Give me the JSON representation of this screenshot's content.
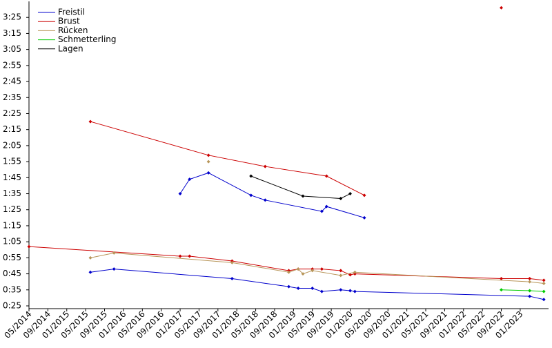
{
  "chart_data": {
    "type": "line",
    "legend": "top-left",
    "xlim": [
      "05/2014",
      "07/2023"
    ],
    "ylim": [
      25,
      215
    ],
    "xticks": [
      "05/2014",
      "09/2014",
      "01/2015",
      "05/2015",
      "09/2015",
      "01/2016",
      "05/2016",
      "09/2016",
      "01/2017",
      "05/2017",
      "09/2017",
      "01/2018",
      "05/2018",
      "09/2018",
      "01/2019",
      "05/2019",
      "09/2019",
      "01/2020",
      "05/2020",
      "09/2020",
      "01/2021",
      "05/2021",
      "09/2021",
      "01/2022",
      "05/2022",
      "09/2022",
      "01/2023"
    ],
    "yticks": [
      {
        "value": 25,
        "label": "0:25"
      },
      {
        "value": 35,
        "label": "0:35"
      },
      {
        "value": 45,
        "label": "0:45"
      },
      {
        "value": 55,
        "label": "0:55"
      },
      {
        "value": 65,
        "label": "1:05"
      },
      {
        "value": 75,
        "label": "1:15"
      },
      {
        "value": 85,
        "label": "1:25"
      },
      {
        "value": 95,
        "label": "1:35"
      },
      {
        "value": 105,
        "label": "1:45"
      },
      {
        "value": 115,
        "label": "1:55"
      },
      {
        "value": 125,
        "label": "2:05"
      },
      {
        "value": 135,
        "label": "2:15"
      },
      {
        "value": 145,
        "label": "2:25"
      },
      {
        "value": 155,
        "label": "2:35"
      },
      {
        "value": 165,
        "label": "2:45"
      },
      {
        "value": 175,
        "label": "2:55"
      },
      {
        "value": 185,
        "label": "3:05"
      },
      {
        "value": 195,
        "label": "3:15"
      },
      {
        "value": 205,
        "label": "3:25"
      }
    ],
    "series": [
      {
        "name": "Freistil",
        "color": "#0000cc",
        "x": [
          "01/2017",
          "03/2017",
          "07/2017",
          "04/2018",
          "07/2018",
          "07/2019",
          "08/2019",
          "04/2020",
          null,
          "06/2015",
          "11/2015",
          "12/2017",
          "12/2018",
          "02/2019",
          "05/2019",
          "07/2019",
          "11/2019",
          "01/2020",
          "02/2020",
          "03/2023",
          "06/2023"
        ],
        "values": [
          95,
          104,
          108,
          94,
          91,
          84,
          87,
          80,
          null,
          46,
          48,
          42,
          37,
          36,
          36,
          34,
          35,
          34.5,
          34,
          31,
          29
        ]
      },
      {
        "name": "Brust",
        "color": "#cc0000",
        "x": [
          "06/2015",
          "07/2017",
          "07/2018",
          "08/2019",
          "04/2020",
          null,
          "05/2014",
          "01/2017",
          "03/2017",
          "12/2017",
          "12/2018",
          "02/2019",
          "05/2019",
          "07/2019",
          "11/2019",
          "01/2020",
          "02/2020",
          "09/2022",
          "03/2023",
          "06/2023",
          null,
          "09/2022"
        ],
        "values": [
          140,
          119,
          112,
          106,
          94,
          null,
          62,
          56,
          56,
          53,
          47,
          48,
          48,
          48,
          47,
          44.4,
          45,
          42,
          42,
          41,
          null,
          211
        ]
      },
      {
        "name": "Rücken",
        "color": "#b8965a",
        "x": [
          "06/2015",
          "11/2015",
          "12/2017",
          "12/2018",
          "02/2019",
          "03/2019",
          "05/2019",
          "11/2019",
          "02/2020",
          "03/2023",
          "06/2023",
          null,
          "07/2017"
        ],
        "values": [
          55,
          58,
          52,
          46,
          48,
          45,
          47,
          44,
          46,
          40,
          39,
          null,
          115
        ]
      },
      {
        "name": "Schmetterling",
        "color": "#00cc00",
        "x": [
          "09/2022",
          "03/2023",
          "06/2023"
        ],
        "values": [
          35,
          34.5,
          34
        ]
      },
      {
        "name": "Lagen",
        "color": "#000000",
        "x": [
          "04/2018",
          "03/2019",
          "11/2019",
          "01/2020"
        ],
        "values": [
          106,
          93.5,
          92,
          95
        ]
      }
    ]
  }
}
